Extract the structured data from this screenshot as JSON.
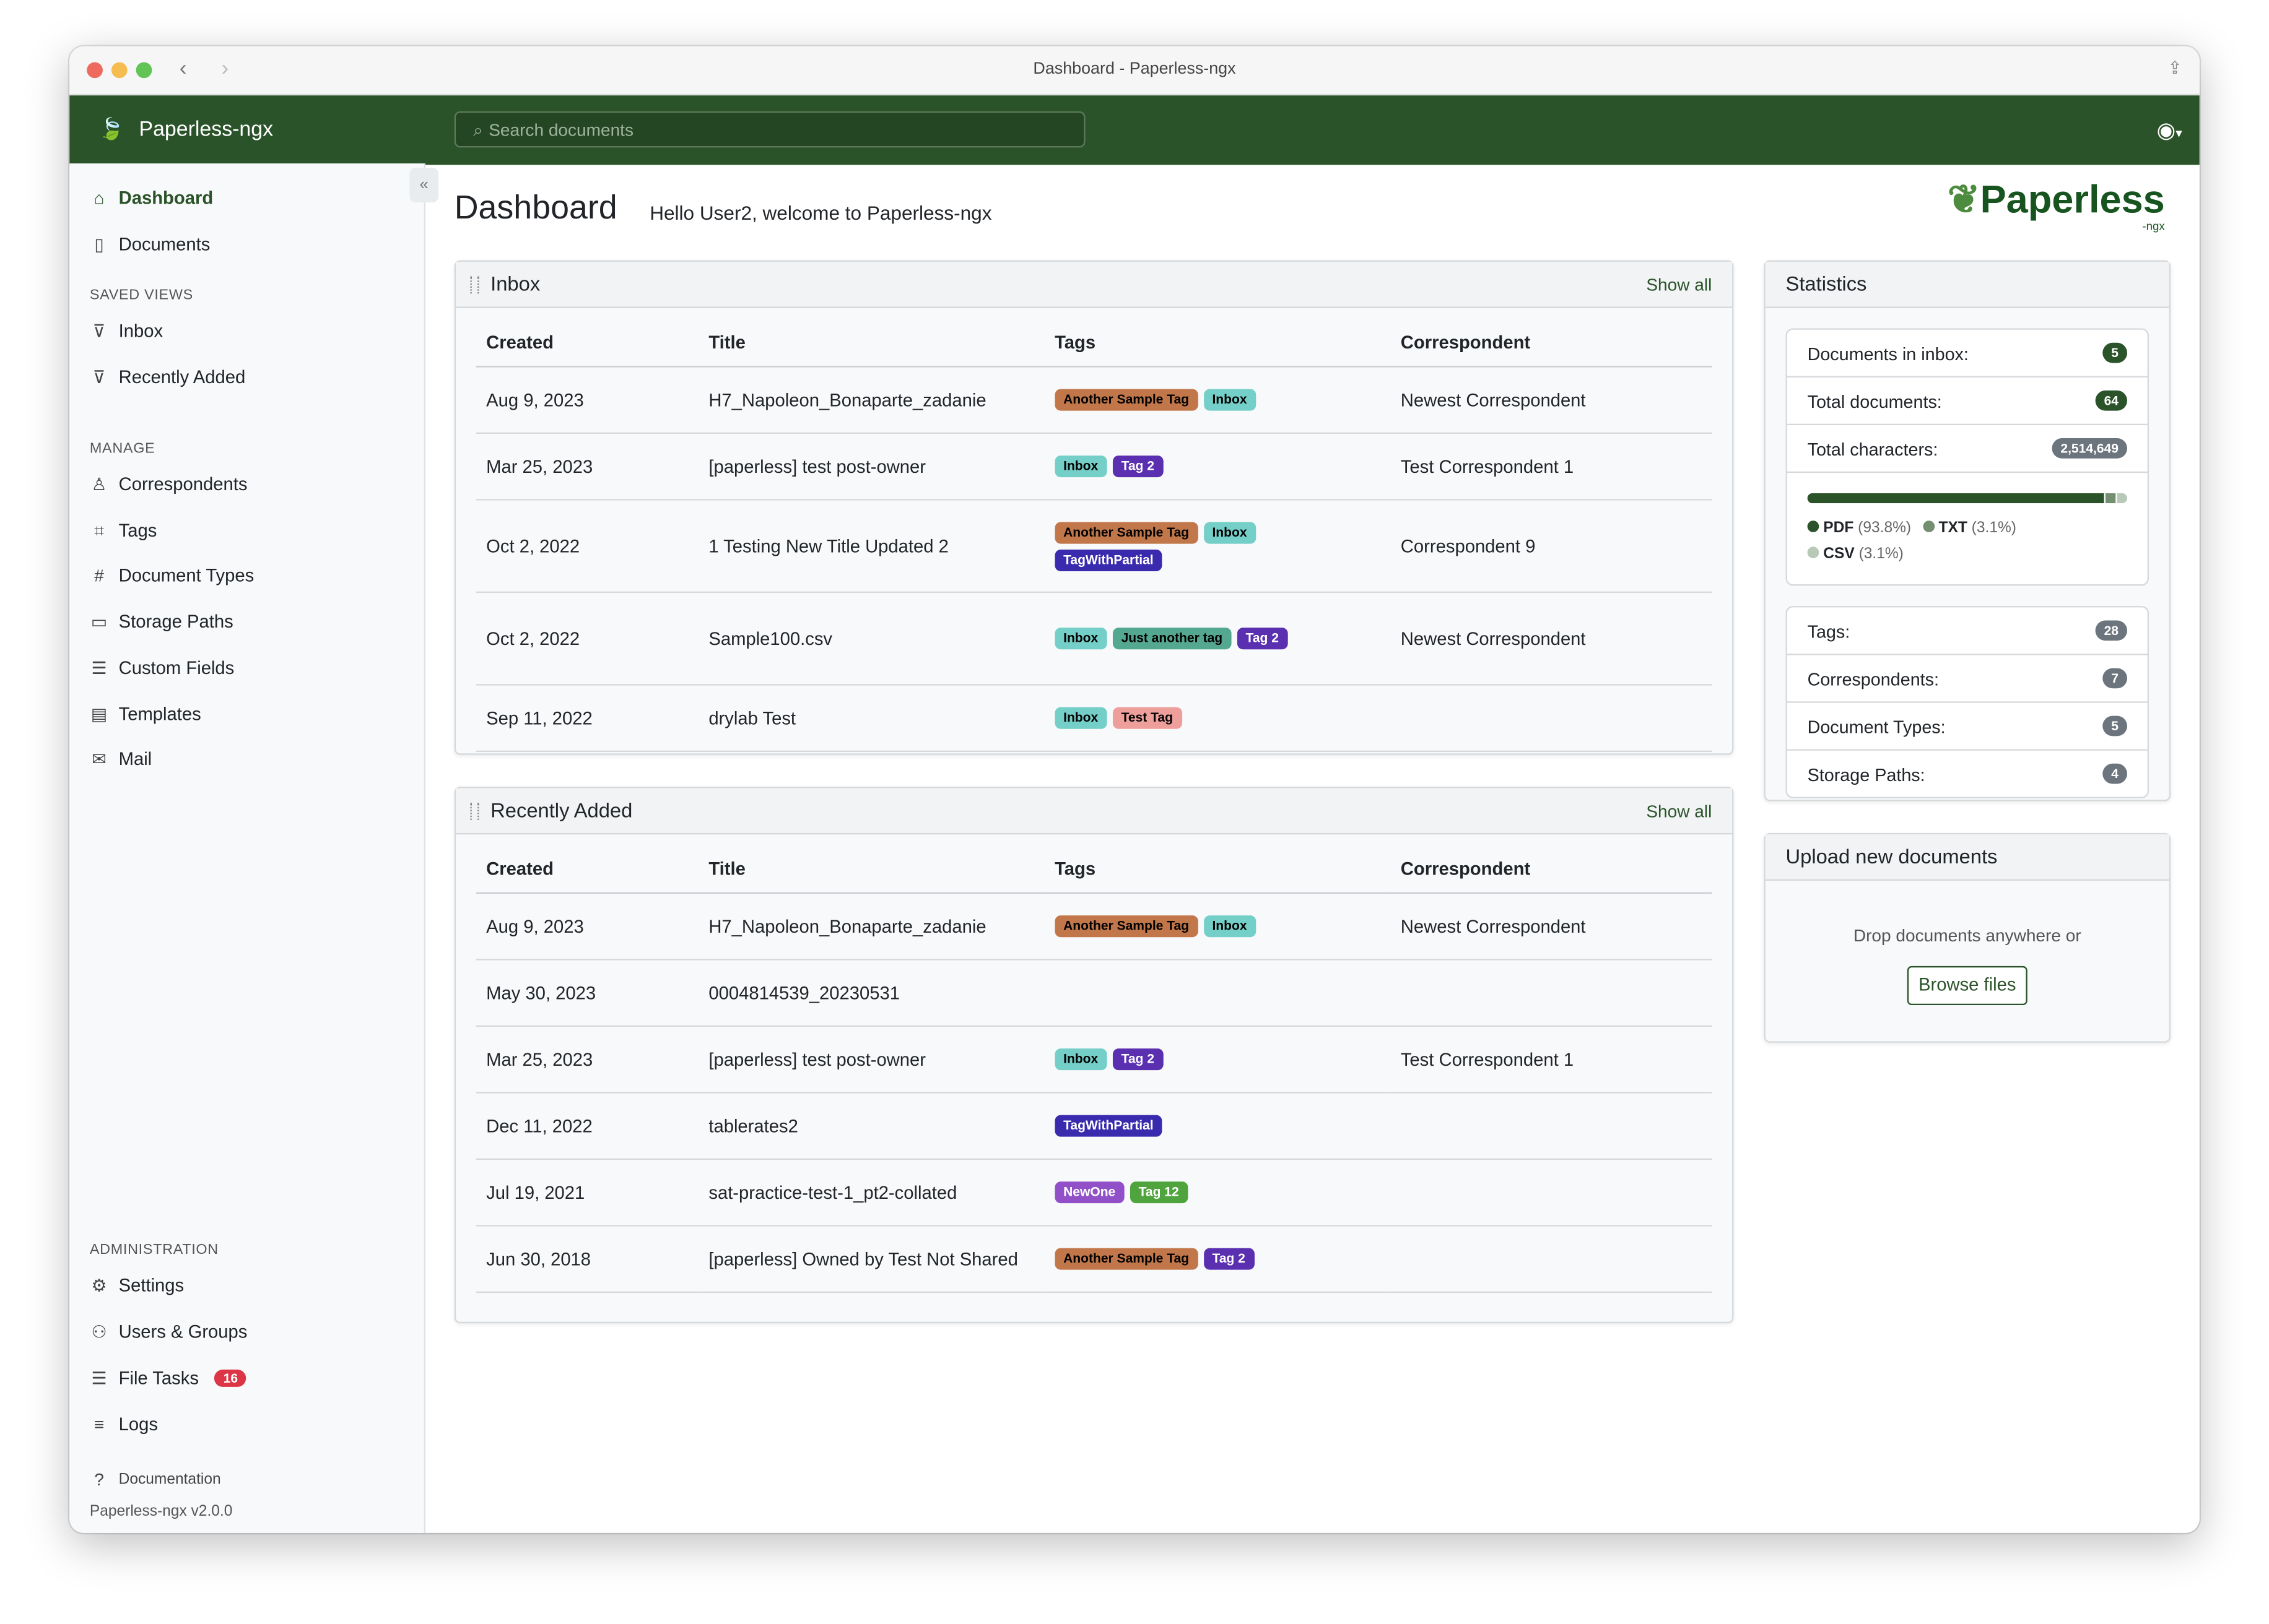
{
  "window": {
    "title": "Dashboard - Paperless-ngx"
  },
  "navbar": {
    "brand": "Paperless-ngx",
    "search_placeholder": "Search documents",
    "brand_color": "#2b5329"
  },
  "sidebar": {
    "items": [
      {
        "label": "Dashboard",
        "icon": "house-icon"
      },
      {
        "label": "Documents",
        "icon": "file-icon"
      }
    ],
    "saved_views_heading": "SAVED VIEWS",
    "saved_views": [
      {
        "label": "Inbox",
        "icon": "funnel-icon"
      },
      {
        "label": "Recently Added",
        "icon": "funnel-icon"
      }
    ],
    "manage_heading": "MANAGE",
    "manage": [
      {
        "label": "Correspondents",
        "icon": "person-icon"
      },
      {
        "label": "Tags",
        "icon": "tags-icon"
      },
      {
        "label": "Document Types",
        "icon": "hash-icon"
      },
      {
        "label": "Storage Paths",
        "icon": "folder-icon"
      },
      {
        "label": "Custom Fields",
        "icon": "ui-radios-icon"
      },
      {
        "label": "Templates",
        "icon": "file-text-icon"
      },
      {
        "label": "Mail",
        "icon": "envelope-icon"
      }
    ],
    "admin_heading": "ADMINISTRATION",
    "admin": [
      {
        "label": "Settings",
        "icon": "gear-icon"
      },
      {
        "label": "Users & Groups",
        "icon": "people-icon"
      },
      {
        "label": "File Tasks",
        "icon": "list-task-icon",
        "badge": "16"
      },
      {
        "label": "Logs",
        "icon": "text-left-icon"
      }
    ],
    "documentation": "Documentation",
    "version": "Paperless-ngx v2.0.0"
  },
  "main": {
    "title": "Dashboard",
    "welcome": "Hello User2, welcome to Paperless-ngx",
    "logo": "Paperless",
    "logo_sub": "-ngx"
  },
  "columns": [
    "Created",
    "Title",
    "Tags",
    "Correspondent"
  ],
  "inbox": {
    "title": "Inbox",
    "show_all": "Show all",
    "rows": [
      {
        "created": "Aug 9, 2023",
        "title": "H7_Napoleon_Bonaparte_zadanie",
        "tags": [
          "Another Sample Tag",
          "Inbox"
        ],
        "correspondent": "Newest Correspondent"
      },
      {
        "created": "Mar 25, 2023",
        "title": "[paperless] test post-owner",
        "tags": [
          "Inbox",
          "Tag 2"
        ],
        "correspondent": "Test Correspondent 1"
      },
      {
        "created": "Oct 2, 2022",
        "title": "1 Testing New Title Updated 2",
        "tags": [
          "Another Sample Tag",
          "Inbox",
          "TagWithPartial"
        ],
        "correspondent": "Correspondent 9"
      },
      {
        "created": "Oct 2, 2022",
        "title": "Sample100.csv",
        "tags": [
          "Inbox",
          "Just another tag",
          "Tag 2"
        ],
        "correspondent": "Newest Correspondent"
      },
      {
        "created": "Sep 11, 2022",
        "title": "drylab Test",
        "tags": [
          "Inbox",
          "Test Tag"
        ],
        "correspondent": ""
      }
    ]
  },
  "recent": {
    "title": "Recently Added",
    "show_all": "Show all",
    "rows": [
      {
        "created": "Aug 9, 2023",
        "title": "H7_Napoleon_Bonaparte_zadanie",
        "tags": [
          "Another Sample Tag",
          "Inbox"
        ],
        "correspondent": "Newest Correspondent"
      },
      {
        "created": "May 30, 2023",
        "title": "0004814539_20230531",
        "tags": [],
        "correspondent": ""
      },
      {
        "created": "Mar 25, 2023",
        "title": "[paperless] test post-owner",
        "tags": [
          "Inbox",
          "Tag 2"
        ],
        "correspondent": "Test Correspondent 1"
      },
      {
        "created": "Dec 11, 2022",
        "title": "tablerates2",
        "tags": [
          "TagWithPartial"
        ],
        "correspondent": ""
      },
      {
        "created": "Jul 19, 2021",
        "title": "sat-practice-test-1_pt2-collated",
        "tags": [
          "NewOne",
          "Tag 12"
        ],
        "correspondent": ""
      },
      {
        "created": "Jun 30, 2018",
        "title": "[paperless] Owned by Test Not Shared",
        "tags": [
          "Another Sample Tag",
          "Tag 2"
        ],
        "correspondent": ""
      }
    ]
  },
  "tag_colors": {
    "Another Sample Tag": {
      "bg": "#c2774a",
      "fg": "#000000"
    },
    "Inbox": {
      "bg": "#74cfc8",
      "fg": "#000000"
    },
    "Tag 2": {
      "bg": "#5a2fb0",
      "fg": "#ffffff"
    },
    "TagWithPartial": {
      "bg": "#3a2bae",
      "fg": "#ffffff"
    },
    "Just another tag": {
      "bg": "#54a88f",
      "fg": "#000000"
    },
    "Test Tag": {
      "bg": "#ee9f9c",
      "fg": "#000000"
    },
    "NewOne": {
      "bg": "#9150c8",
      "fg": "#ffffff"
    },
    "Tag 12": {
      "bg": "#4fa43d",
      "fg": "#ffffff"
    }
  },
  "statistics": {
    "title": "Statistics",
    "docs": [
      {
        "label": "Documents in inbox:",
        "value": "5",
        "color": "#2b5329"
      },
      {
        "label": "Total documents:",
        "value": "64",
        "color": "#2b5329"
      },
      {
        "label": "Total characters:",
        "value": "2,514,649",
        "color": "#6c757d"
      }
    ],
    "file_types": [
      {
        "name": "PDF",
        "percent": 93.8,
        "label": "(93.8%)",
        "color": "#2b5329"
      },
      {
        "name": "TXT",
        "percent": 3.1,
        "label": "(3.1%)",
        "color": "#748f70"
      },
      {
        "name": "CSV",
        "percent": 3.1,
        "label": "(3.1%)",
        "color": "#b9c9b7"
      }
    ],
    "objects": [
      {
        "label": "Tags:",
        "value": "28"
      },
      {
        "label": "Correspondents:",
        "value": "7"
      },
      {
        "label": "Document Types:",
        "value": "5"
      },
      {
        "label": "Storage Paths:",
        "value": "4"
      }
    ]
  },
  "upload": {
    "title": "Upload new documents",
    "drop_text": "Drop documents anywhere or",
    "browse": "Browse files"
  }
}
